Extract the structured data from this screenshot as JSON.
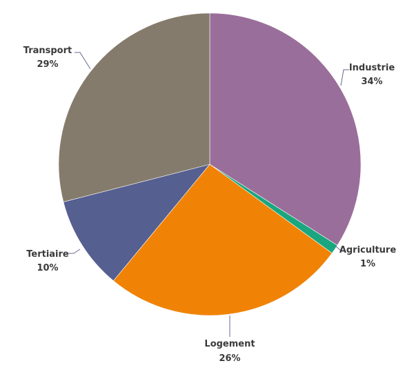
{
  "chart_data": {
    "type": "pie",
    "start": "top, clockwise",
    "slices": [
      {
        "name": "Industrie",
        "value": 34,
        "label": "34%",
        "color": "#9a6e9a"
      },
      {
        "name": "Agriculture",
        "value": 1,
        "label": "1%",
        "color": "#1aa67e"
      },
      {
        "name": "Logement",
        "value": 26,
        "label": "26%",
        "color": "#f08306"
      },
      {
        "name": "Tertiaire",
        "value": 10,
        "label": "10%",
        "color": "#555f90"
      },
      {
        "name": "Transport",
        "value": 29,
        "label": "29%",
        "color": "#857b6c"
      }
    ]
  }
}
